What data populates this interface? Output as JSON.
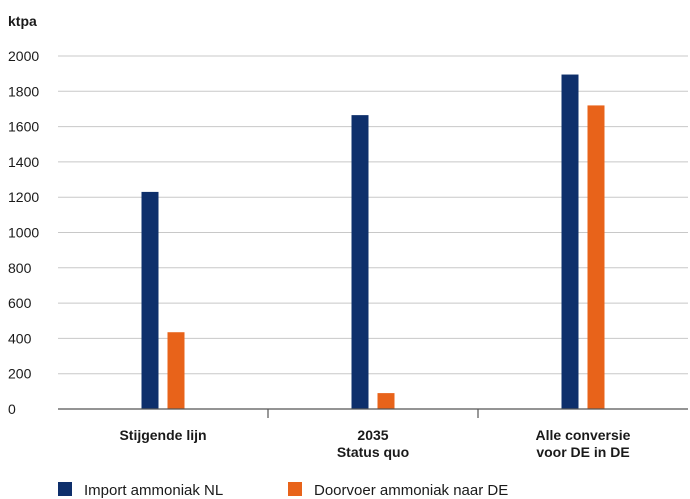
{
  "chart_data": {
    "type": "bar",
    "ylabel": "ktpa",
    "ylim": [
      0,
      2000
    ],
    "yticks": [
      0,
      200,
      400,
      600,
      800,
      1000,
      1200,
      1400,
      1600,
      1800,
      2000
    ],
    "categories": [
      [
        "Stijgende lijn"
      ],
      [
        "2035",
        "Status quo"
      ],
      [
        "Alle conversie",
        "voor DE in DE"
      ]
    ],
    "series": [
      {
        "name": "Import ammoniak NL",
        "color": "#0e2f6b",
        "values": [
          1230,
          1665,
          1895
        ]
      },
      {
        "name": "Doorvoer ammoniak naar DE",
        "color": "#e8631a",
        "values": [
          435,
          90,
          1720
        ]
      }
    ],
    "grid": true,
    "legend": "bottom-left"
  }
}
